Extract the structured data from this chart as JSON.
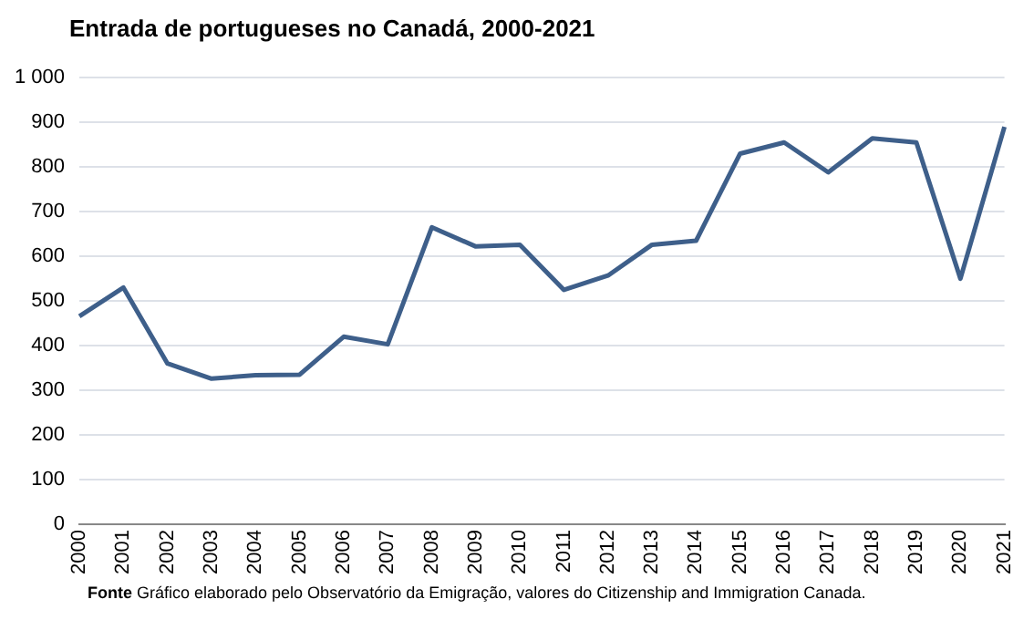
{
  "chart_data": {
    "type": "line",
    "title": "Entrada de portugueses no Canadá, 2000-2021",
    "categories": [
      "2000",
      "2001",
      "2002",
      "2003",
      "2004",
      "2005",
      "2006",
      "2007",
      "2008",
      "2009",
      "2010",
      "2011",
      "2012",
      "2013",
      "2014",
      "2015",
      "2016",
      "2017",
      "2018",
      "2019",
      "2020",
      "2021"
    ],
    "series": [
      {
        "color": "#3e5f8a",
        "values": [
          466,
          530,
          360,
          326,
          334,
          335,
          420,
          403,
          665,
          622,
          626,
          525,
          557,
          626,
          635,
          830,
          855,
          788,
          864,
          855,
          550,
          890
        ]
      }
    ],
    "ylim": [
      0,
      1000
    ],
    "yticks": [
      0,
      100,
      200,
      300,
      400,
      500,
      600,
      700,
      800,
      900,
      {
        "value": 1000,
        "label": "1 000"
      }
    ],
    "grid": "y",
    "legend": false,
    "marker": "none",
    "line_style": "solid",
    "annotations": [
      "Fonte  Gráfico elaborado pelo Observatório da Emigração, valores do Citizenship and Immigration Canada."
    ]
  }
}
